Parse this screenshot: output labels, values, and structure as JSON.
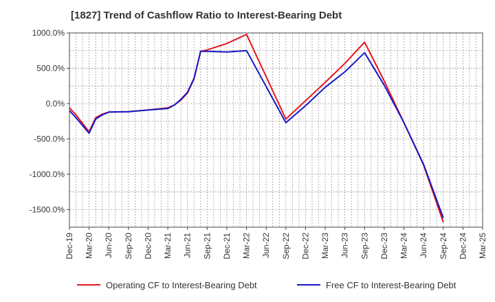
{
  "chart_data": {
    "type": "line",
    "title": "[1827]  Trend of Cashflow Ratio to Interest-Bearing Debt",
    "xlabel": "",
    "ylabel": "",
    "x": [
      "Dec-19",
      "Jan-20",
      "Feb-20",
      "Mar-20",
      "Apr-20",
      "May-20",
      "Jun-20",
      "Sep-20",
      "Dec-20",
      "Mar-21",
      "Apr-21",
      "May-21",
      "Jun-21",
      "Jul-21",
      "Aug-21",
      "Sep-21",
      "Dec-21",
      "Mar-22",
      "Sep-22",
      "Dec-22",
      "Mar-23",
      "Jun-23",
      "Sep-23",
      "Dec-23",
      "Mar-24",
      "Jun-24",
      "Sep-24"
    ],
    "x_ticks": [
      "Dec-19",
      "Mar-20",
      "Jun-20",
      "Sep-20",
      "Dec-20",
      "Mar-21",
      "Jun-21",
      "Sep-21",
      "Dec-21",
      "Mar-22",
      "Jun-22",
      "Sep-22",
      "Dec-22",
      "Mar-23",
      "Jun-23",
      "Sep-23",
      "Dec-23",
      "Mar-24",
      "Jun-24",
      "Sep-24",
      "Dec-24",
      "Mar-25"
    ],
    "ylim": [
      -1750,
      1000
    ],
    "y_ticks": [
      1000,
      500,
      0,
      -500,
      -1000,
      -1500
    ],
    "y_tick_labels": [
      "1000.0%",
      "500.0%",
      "0.0%",
      "-500.0%",
      "-1000.0%",
      "-1500.0%"
    ],
    "grid": true,
    "legend_position": "bottom",
    "series": [
      {
        "name": "Operating CF to Interest-Bearing Debt",
        "color": "#e8141b",
        "values": [
          -60,
          -160,
          -280,
          -400,
          -200,
          -150,
          -120,
          -115,
          -90,
          -60,
          -20,
          50,
          150,
          350,
          740,
          760,
          850,
          980,
          -220,
          40,
          300,
          570,
          870,
          320,
          -270,
          -870,
          -1680
        ]
      },
      {
        "name": "Free CF to Interest-Bearing Debt",
        "color": "#1417c8",
        "values": [
          -100,
          -200,
          -310,
          -420,
          -220,
          -160,
          -120,
          -115,
          -90,
          -70,
          -20,
          60,
          160,
          360,
          740,
          740,
          730,
          750,
          -270,
          -30,
          230,
          450,
          720,
          260,
          -270,
          -860,
          -1620
        ]
      }
    ]
  }
}
